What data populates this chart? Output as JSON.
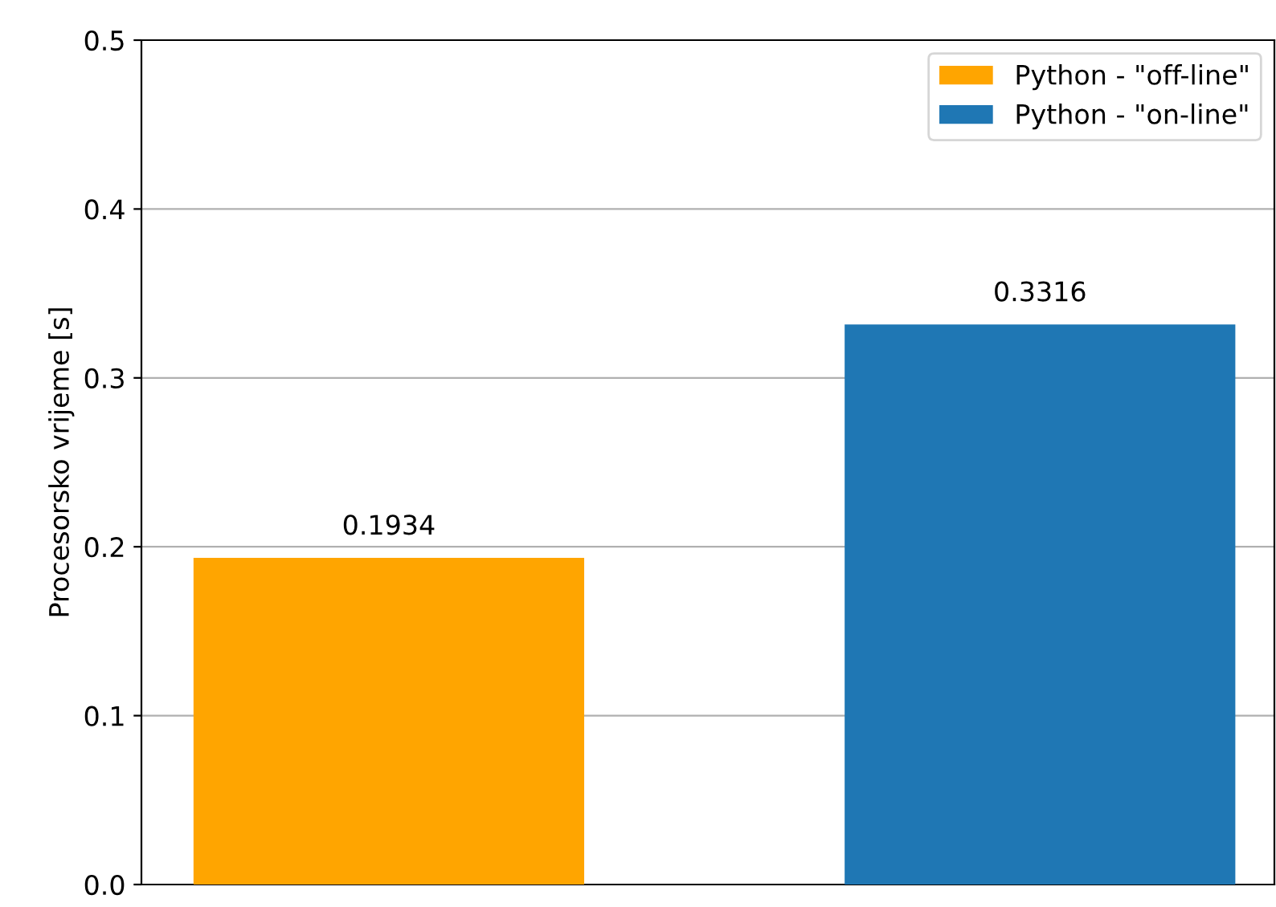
{
  "chart_data": {
    "type": "bar",
    "ylabel": "Procesorsko vrijeme [s]",
    "categories": [
      null,
      null
    ],
    "series": [
      {
        "name": "Python - \"off-line\"",
        "color": "#ffa500",
        "values": [
          0.1934,
          null
        ]
      },
      {
        "name": "Python - \"on-line\"",
        "color": "#1f77b4",
        "values": [
          null,
          0.3316
        ]
      }
    ],
    "ylim": [
      0,
      0.5
    ],
    "yticks": [
      {
        "value": 0,
        "label": "0.0"
      },
      0.1,
      0.2,
      0.3,
      0.4,
      0.5
    ],
    "grid": "y",
    "legend": "top right",
    "data_labels": true,
    "tick_labels": "y"
  }
}
